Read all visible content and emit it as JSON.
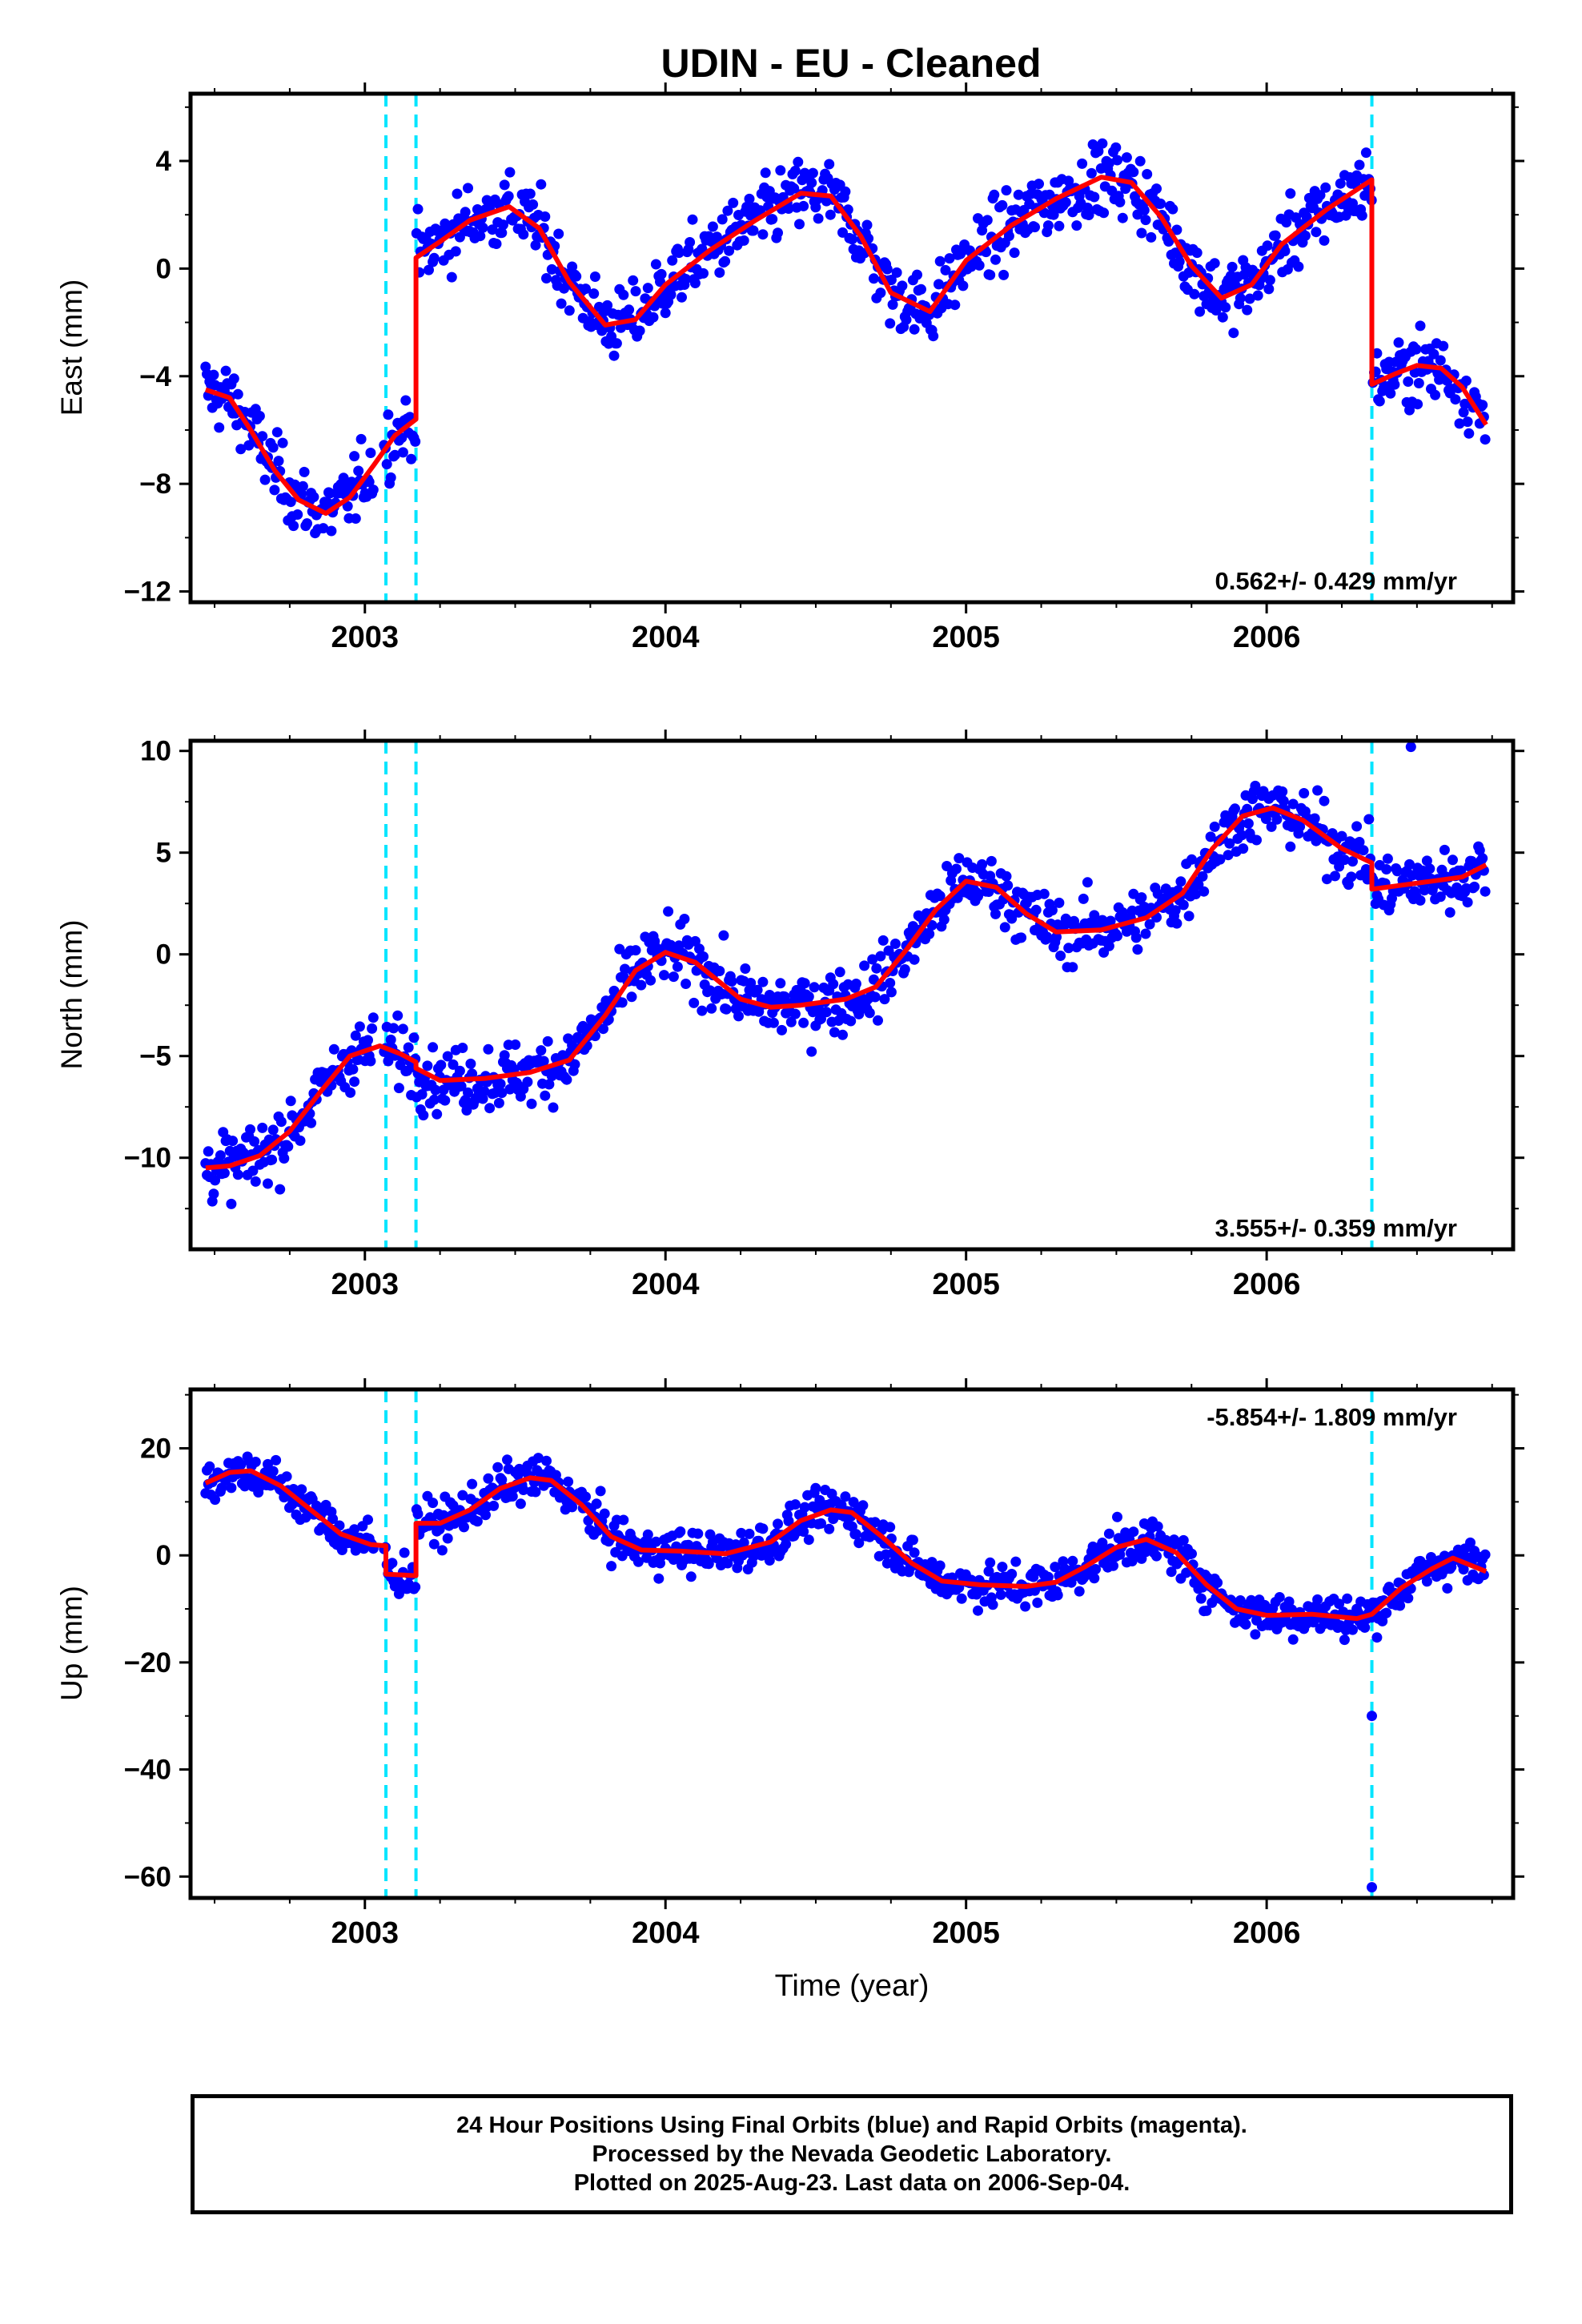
{
  "title": "UDIN  - EU - Cleaned",
  "xlabel": "Time (year)",
  "footer": {
    "line1": "24 Hour Positions Using Final Orbits (blue) and Rapid Orbits (magenta).",
    "line2": "Processed by the Nevada Geodetic Laboratory.",
    "line3": "Plotted on 2025-Aug-23. Last data on 2006-Sep-04."
  },
  "colors": {
    "data": "#0000ff",
    "model": "#ff0000",
    "steps": "#00e5ff",
    "frame": "#000000"
  },
  "chart_data": [
    {
      "type": "scatter",
      "component": "east",
      "ylabel": "East (mm)",
      "rate_text": "0.562+/- 0.429 mm/yr",
      "xlim": [
        2002.42,
        2006.82
      ],
      "ylim": [
        -12.4,
        6.5
      ],
      "yticks": [
        -12,
        -8,
        -4,
        0,
        4
      ],
      "ytick_labels": [
        "−12",
        "−8",
        "−4",
        "0",
        "4"
      ],
      "xticks": [
        2003,
        2004,
        2005,
        2006
      ],
      "xtick_labels": [
        "2003",
        "2004",
        "2005",
        "2006"
      ],
      "steps": [
        2003.07,
        2003.17,
        2006.35
      ],
      "series": [
        {
          "role": "model",
          "x": [
            2002.47,
            2002.55,
            2002.62,
            2002.7,
            2002.78,
            2002.87,
            2002.95,
            2003.03,
            2003.1,
            2003.17,
            2003.17,
            2003.25,
            2003.35,
            2003.48,
            2003.58,
            2003.68,
            2003.8,
            2003.9,
            2004.0,
            2004.15,
            2004.3,
            2004.45,
            2004.55,
            2004.65,
            2004.75,
            2004.88,
            2005.0,
            2005.15,
            2005.3,
            2005.45,
            2005.55,
            2005.65,
            2005.75,
            2005.85,
            2005.95,
            2006.05,
            2006.2,
            2006.35,
            2006.35,
            2006.43,
            2006.5,
            2006.58,
            2006.65,
            2006.73
          ],
          "y": [
            -4.5,
            -4.8,
            -6.0,
            -7.5,
            -8.6,
            -9.1,
            -8.5,
            -7.3,
            -6.2,
            -5.6,
            0.4,
            1.0,
            1.8,
            2.3,
            1.5,
            -0.5,
            -2.1,
            -1.9,
            -0.6,
            0.7,
            1.8,
            2.8,
            2.7,
            1.2,
            -0.9,
            -1.6,
            0.3,
            1.6,
            2.6,
            3.4,
            3.2,
            1.9,
            0.1,
            -1.1,
            -0.6,
            0.9,
            2.2,
            3.3,
            -4.3,
            -3.9,
            -3.6,
            -3.7,
            -4.4,
            -5.8
          ]
        },
        {
          "role": "data",
          "x": [],
          "y": []
        }
      ]
    },
    {
      "type": "scatter",
      "component": "north",
      "ylabel": "North (mm)",
      "rate_text": "3.555+/- 0.359 mm/yr",
      "xlim": [
        2002.42,
        2006.82
      ],
      "ylim": [
        -14.5,
        10.5
      ],
      "yticks": [
        -10,
        -5,
        0,
        5,
        10
      ],
      "ytick_labels": [
        "−10",
        "−5",
        "0",
        "5",
        "10"
      ],
      "xticks": [
        2003,
        2004,
        2005,
        2006
      ],
      "xtick_labels": [
        "2003",
        "2004",
        "2005",
        "2006"
      ],
      "steps": [
        2003.07,
        2003.17,
        2006.35
      ],
      "series": [
        {
          "role": "model",
          "x": [
            2002.47,
            2002.55,
            2002.65,
            2002.75,
            2002.85,
            2002.95,
            2003.05,
            2003.12,
            2003.17,
            2003.17,
            2003.25,
            2003.4,
            2003.55,
            2003.68,
            2003.8,
            2003.9,
            2004.0,
            2004.1,
            2004.25,
            2004.35,
            2004.45,
            2004.6,
            2004.7,
            2004.8,
            2004.9,
            2005.0,
            2005.1,
            2005.2,
            2005.3,
            2005.45,
            2005.6,
            2005.72,
            2005.82,
            2005.92,
            2006.02,
            2006.12,
            2006.25,
            2006.35,
            2006.35,
            2006.45,
            2006.55,
            2006.65,
            2006.73
          ],
          "y": [
            -10.5,
            -10.4,
            -9.9,
            -8.7,
            -6.8,
            -5.0,
            -4.5,
            -4.9,
            -5.3,
            -5.6,
            -6.2,
            -6.1,
            -5.8,
            -5.2,
            -3.0,
            -0.8,
            0.1,
            -0.4,
            -2.2,
            -2.6,
            -2.5,
            -2.2,
            -1.6,
            0.2,
            2.2,
            3.6,
            3.3,
            2.0,
            1.1,
            1.2,
            1.8,
            3.0,
            5.2,
            6.8,
            7.2,
            6.6,
            5.2,
            4.5,
            3.2,
            3.4,
            3.6,
            3.8,
            4.4
          ]
        },
        {
          "role": "data",
          "x": [],
          "y": []
        }
      ]
    },
    {
      "type": "scatter",
      "component": "up",
      "ylabel": "Up (mm)",
      "rate_text": "-5.854+/- 1.809 mm/yr",
      "xlim": [
        2002.42,
        2006.82
      ],
      "ylim": [
        -64,
        31
      ],
      "yticks": [
        -60,
        -40,
        -20,
        0,
        20
      ],
      "ytick_labels": [
        "−60",
        "−40",
        "−20",
        "0",
        "20"
      ],
      "xticks": [
        2003,
        2004,
        2005,
        2006
      ],
      "xtick_labels": [
        "2003",
        "2004",
        "2005",
        "2006"
      ],
      "steps": [
        2003.07,
        2003.17,
        2006.35
      ],
      "series": [
        {
          "role": "model",
          "x": [
            2002.47,
            2002.55,
            2002.62,
            2002.72,
            2002.82,
            2002.92,
            2003.02,
            2003.07,
            2003.07,
            2003.17,
            2003.17,
            2003.25,
            2003.35,
            2003.45,
            2003.55,
            2003.62,
            2003.72,
            2003.82,
            2003.92,
            2004.05,
            2004.2,
            2004.35,
            2004.45,
            2004.55,
            2004.62,
            2004.72,
            2004.82,
            2004.92,
            2005.05,
            2005.2,
            2005.3,
            2005.4,
            2005.5,
            2005.6,
            2005.7,
            2005.8,
            2005.9,
            2006.0,
            2006.15,
            2006.3,
            2006.35,
            2006.45,
            2006.55,
            2006.62,
            2006.73
          ],
          "y": [
            13.5,
            15.5,
            15.8,
            13.0,
            8.5,
            4.0,
            2.0,
            1.8,
            -3.5,
            -3.8,
            6.0,
            6.0,
            8.5,
            12.5,
            14.5,
            14.0,
            9.5,
            3.5,
            1.0,
            0.8,
            0.3,
            2.5,
            6.5,
            8.5,
            8.0,
            3.5,
            -1.5,
            -4.8,
            -5.5,
            -5.8,
            -5.0,
            -2.0,
            1.5,
            3.0,
            0.5,
            -5.5,
            -10.0,
            -11.2,
            -11.0,
            -11.8,
            -11.0,
            -6.0,
            -2.5,
            -0.5,
            -3.0
          ]
        },
        {
          "role": "data",
          "x": [],
          "y": []
        }
      ]
    }
  ]
}
